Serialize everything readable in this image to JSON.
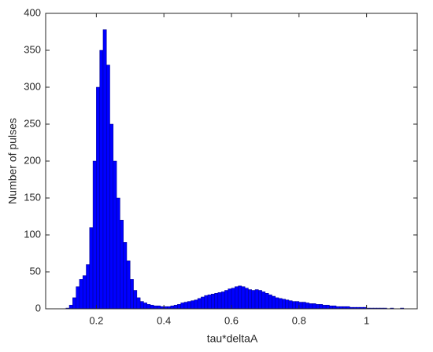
{
  "chart_data": {
    "type": "histogram",
    "x_label": "tau*deltaA",
    "y_label": "Number of pulses",
    "color": "#0000ff",
    "bins": [
      0.11,
      0.12,
      0.13,
      0.14,
      0.15,
      0.16,
      0.17,
      0.18,
      0.19,
      0.2,
      0.21,
      0.22,
      0.23,
      0.24,
      0.25,
      0.26,
      0.27,
      0.28,
      0.29,
      0.3,
      0.31,
      0.32,
      0.33,
      0.34,
      0.35,
      0.36,
      0.37,
      0.38,
      0.39,
      0.4,
      0.41,
      0.42,
      0.43,
      0.44,
      0.45,
      0.46,
      0.47,
      0.48,
      0.49,
      0.5,
      0.51,
      0.52,
      0.53,
      0.54,
      0.55,
      0.56,
      0.57,
      0.58,
      0.59,
      0.6,
      0.61,
      0.62,
      0.63,
      0.64,
      0.65,
      0.66,
      0.67,
      0.68,
      0.69,
      0.7,
      0.71,
      0.72,
      0.73,
      0.74,
      0.75,
      0.76,
      0.77,
      0.78,
      0.79,
      0.8,
      0.81,
      0.82,
      0.83,
      0.84,
      0.85,
      0.86,
      0.87,
      0.88,
      0.89,
      0.9,
      0.91,
      0.92,
      0.93,
      0.94,
      0.95,
      0.96,
      0.97,
      0.98,
      0.99,
      1.0,
      1.01,
      1.02,
      1.03,
      1.04,
      1.05,
      1.06,
      1.07,
      1.08,
      1.09,
      1.1,
      1.11
    ],
    "values": [
      1,
      5,
      15,
      30,
      40,
      45,
      60,
      110,
      200,
      300,
      350,
      378,
      330,
      250,
      200,
      150,
      120,
      90,
      65,
      40,
      25,
      15,
      10,
      8,
      6,
      5,
      4,
      4,
      3,
      3,
      3,
      4,
      5,
      6,
      8,
      9,
      10,
      11,
      12,
      14,
      16,
      18,
      19,
      20,
      21,
      22,
      23,
      25,
      27,
      28,
      30,
      31,
      30,
      28,
      26,
      25,
      26,
      25,
      23,
      21,
      19,
      17,
      15,
      14,
      13,
      12,
      11,
      10,
      10,
      9,
      9,
      8,
      7,
      7,
      6,
      6,
      5,
      5,
      4,
      4,
      3,
      3,
      3,
      3,
      2,
      2,
      2,
      2,
      2,
      1,
      1,
      1,
      1,
      1,
      1,
      0,
      1,
      0,
      0,
      1
    ],
    "xlim": [
      0.05,
      1.15
    ],
    "xticks": [
      0.2,
      0.4,
      0.6,
      0.8,
      1
    ],
    "ylim": [
      0,
      400
    ],
    "yticks": [
      0,
      50,
      100,
      150,
      200,
      250,
      300,
      350,
      400
    ]
  }
}
